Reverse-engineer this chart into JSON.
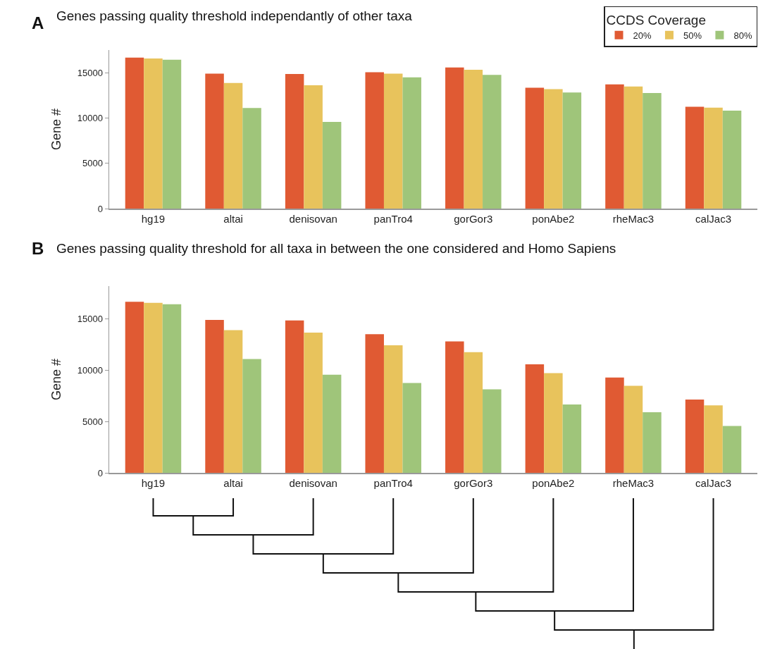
{
  "chart_data": [
    {
      "type": "bar",
      "title": "Genes passing quality threshold independantly of other taxa",
      "annotations": [
        "A"
      ],
      "ylabel": "Gene #",
      "legend_title": "CCDS Coverage",
      "legend": "top right",
      "grid": false,
      "categories": [
        "hg19",
        "altai",
        "denisovan",
        "panTro4",
        "gorGor3",
        "ponAbe2",
        "rheMac3",
        "calJac3"
      ],
      "ylim": [
        0,
        17500
      ],
      "yticks": [
        0,
        5000,
        10000,
        15000
      ],
      "series": [
        {
          "name": "20%",
          "color": "#e05a33",
          "values": [
            16670,
            14900,
            14860,
            15050,
            15570,
            13330,
            13710,
            11240
          ]
        },
        {
          "name": "50%",
          "color": "#e8c35c",
          "values": [
            16570,
            13860,
            13620,
            14900,
            15330,
            13190,
            13480,
            11140
          ]
        },
        {
          "name": "80%",
          "color": "#9fc57a",
          "values": [
            16430,
            11100,
            9570,
            14480,
            14760,
            12810,
            12760,
            10810
          ]
        }
      ]
    },
    {
      "type": "bar",
      "title": "Genes passing quality threshold for all taxa in between the one considered and Homo Sapiens",
      "annotations": [
        "B"
      ],
      "ylabel": "Gene #",
      "legend": false,
      "grid": false,
      "categories": [
        "hg19",
        "altai",
        "denisovan",
        "panTro4",
        "gorGor3",
        "ponAbe2",
        "rheMac3",
        "calJac3"
      ],
      "ylim": [
        0,
        18200
      ],
      "yticks": [
        0,
        5000,
        10000,
        15000
      ],
      "series": [
        {
          "color": "#e05a33",
          "values": [
            16670,
            14900,
            14860,
            13520,
            12810,
            10570,
            9290,
            7140
          ]
        },
        {
          "color": "#e8c35c",
          "values": [
            16570,
            13900,
            13670,
            12430,
            11760,
            9710,
            8480,
            6570
          ]
        },
        {
          "color": "#9fc57a",
          "values": [
            16430,
            11100,
            9570,
            8760,
            8140,
            6670,
            5900,
            4570
          ]
        }
      ]
    }
  ]
}
